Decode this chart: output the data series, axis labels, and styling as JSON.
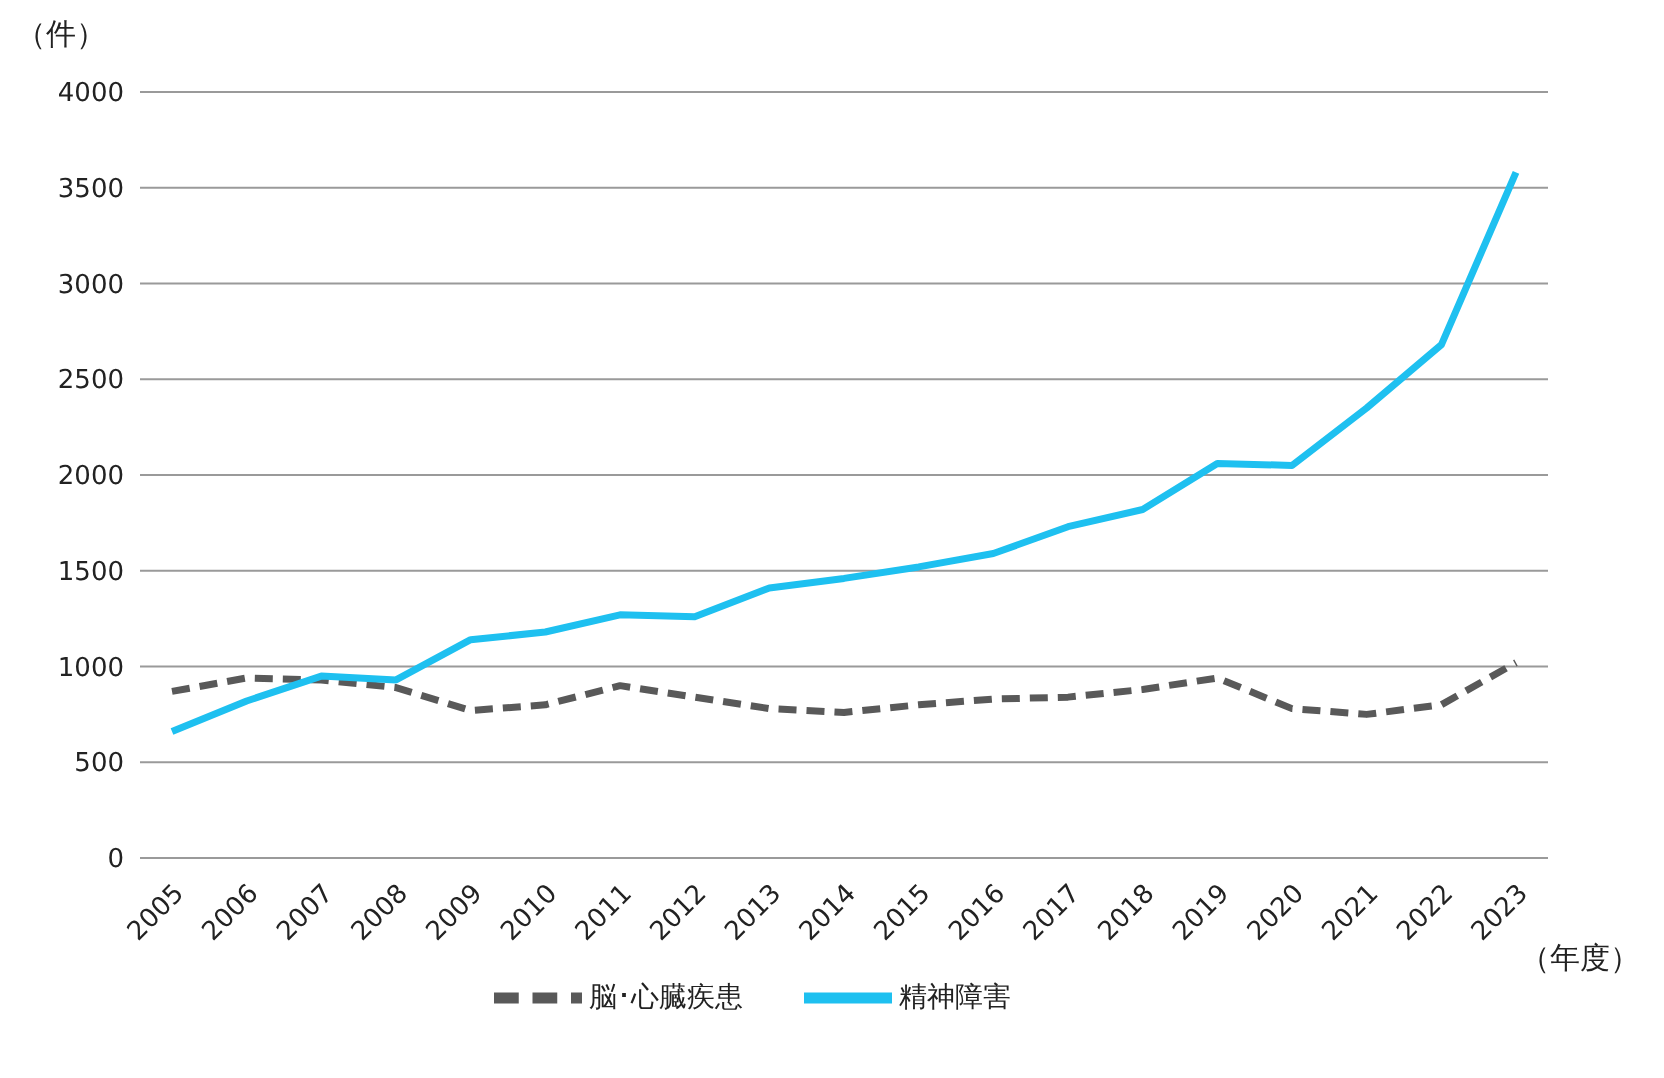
{
  "chart_data": {
    "type": "line",
    "ylabel": "（件）",
    "xlabel": "（年度）",
    "categories": [
      "2005",
      "2006",
      "2007",
      "2008",
      "2009",
      "2010",
      "2011",
      "2012",
      "2013",
      "2014",
      "2015",
      "2016",
      "2017",
      "2018",
      "2019",
      "2020",
      "2021",
      "2022",
      "2023"
    ],
    "series": [
      {
        "name": "脳･心臓疾患",
        "color": "#595959",
        "line_style": "dashed",
        "values": [
          870,
          940,
          930,
          890,
          770,
          800,
          900,
          840,
          780,
          760,
          800,
          830,
          840,
          880,
          940,
          780,
          750,
          800,
          1020
        ]
      },
      {
        "name": "精神障害",
        "color": "#1ec0f0",
        "line_style": "solid",
        "values": [
          660,
          820,
          950,
          930,
          1140,
          1180,
          1270,
          1260,
          1410,
          1460,
          1520,
          1590,
          1730,
          1820,
          2060,
          2050,
          2350,
          2680,
          3580
        ]
      }
    ],
    "ylim": [
      0,
      4000
    ],
    "yticks": [
      0,
      500,
      1000,
      1500,
      2000,
      2500,
      3000,
      3500,
      4000
    ],
    "grid": "y",
    "legend": "bottom",
    "marker": "none"
  }
}
